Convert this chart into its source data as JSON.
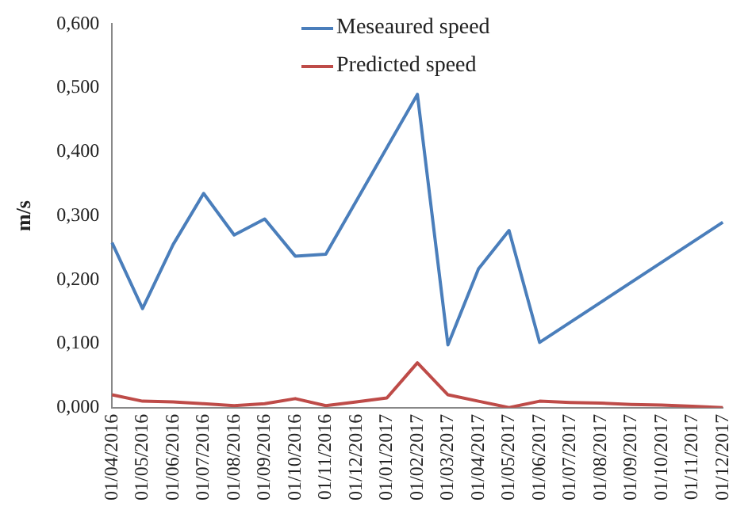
{
  "chart_data": {
    "type": "line",
    "ylabel": "m/s",
    "categories": [
      "01/04/2016",
      "01/05/2016",
      "01/06/2016",
      "01/07/2016",
      "01/08/2016",
      "01/09/2016",
      "01/10/2016",
      "01/11/2016",
      "01/12/2016",
      "01/01/2017",
      "01/02/2017",
      "01/03/2017",
      "01/04/2017",
      "01/05/2017",
      "01/06/2017",
      "01/07/2017",
      "01/08/2017",
      "01/09/2017",
      "01/10/2017",
      "01/11/2017",
      "01/12/2017"
    ],
    "series": [
      {
        "name": "Meseaured speed",
        "color": "#4a7ebb",
        "values": [
          0.258,
          0.155,
          0.255,
          0.335,
          0.27,
          0.295,
          0.237,
          0.24,
          null,
          null,
          0.49,
          0.098,
          0.217,
          0.277,
          0.102,
          null,
          null,
          null,
          null,
          null,
          0.29
        ]
      },
      {
        "name": "Predicted speed",
        "color": "#be4b48",
        "values": [
          0.02,
          0.01,
          0.009,
          0.006,
          0.003,
          0.006,
          0.014,
          0.003,
          0.009,
          0.015,
          0.07,
          0.02,
          0.01,
          0.0,
          0.01,
          0.008,
          0.007,
          0.005,
          0.004,
          0.002,
          0.0
        ]
      }
    ],
    "ylim": [
      0,
      0.6
    ],
    "yticks": [
      {
        "value": 0,
        "label": "0,000"
      },
      {
        "value": 0.1,
        "label": "0,100"
      },
      {
        "value": 0.2,
        "label": "0,200"
      },
      {
        "value": 0.3,
        "label": "0,300"
      },
      {
        "value": 0.4,
        "label": "0,400"
      },
      {
        "value": 0.5,
        "label": "0,500"
      },
      {
        "value": 0.6,
        "label": "0,600"
      }
    ],
    "grid": false,
    "legend": "top",
    "marker": "none",
    "line_style": "solid"
  }
}
